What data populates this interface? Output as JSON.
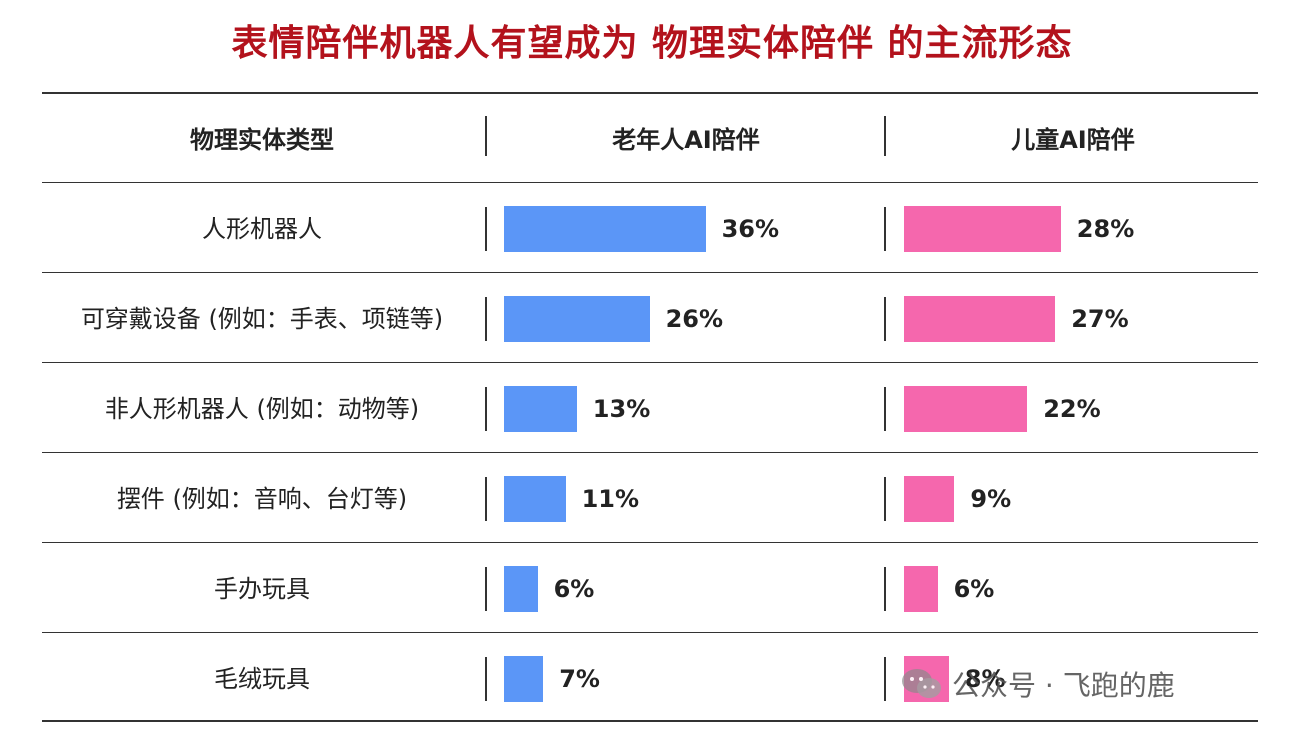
{
  "title": "表情陪伴机器人有望成为 物理实体陪伴 的主流形态",
  "headers": {
    "type": "物理实体类型",
    "elder": "老年人AI陪伴",
    "child": "儿童AI陪伴"
  },
  "colors": {
    "title": "#b3121c",
    "elder_bar": "#5b96f7",
    "child_bar": "#f567ad"
  },
  "chart_data": {
    "type": "bar",
    "orientation": "horizontal",
    "categories": [
      "人形机器人",
      "可穿戴设备 (例如：手表、项链等)",
      "非人形机器人 (例如：动物等)",
      "摆件 (例如：音响、台灯等)",
      "手办玩具",
      "毛绒玩具"
    ],
    "series": [
      {
        "name": "老年人AI陪伴",
        "values": [
          36,
          26,
          13,
          11,
          6,
          7
        ],
        "labels": [
          "36%",
          "26%",
          "13%",
          "11%",
          "6%",
          "7%"
        ]
      },
      {
        "name": "儿童AI陪伴",
        "values": [
          28,
          27,
          22,
          9,
          6,
          8
        ],
        "labels": [
          "28%",
          "27%",
          "22%",
          "9%",
          "6%",
          "8%"
        ]
      }
    ],
    "unit": "%"
  },
  "watermark": {
    "text": "公众号 · 飞跑的鹿",
    "icon": "wechat-icon"
  }
}
